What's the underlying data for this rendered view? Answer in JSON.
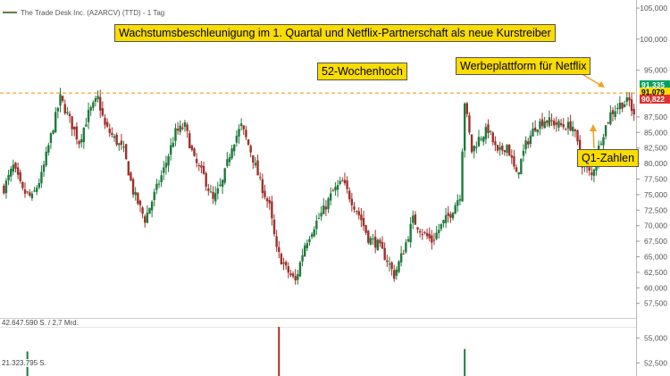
{
  "legend": {
    "title": "The Trade Desk Inc. (A2ARCV) (TTD) - 1 Tag",
    "swatch_colors": [
      "#c0392b",
      "#27ae60"
    ]
  },
  "headline": "Wachstumsbeschleunigung im 1. Quartal und Netflix-Partnerschaft als neue Kurstreiber",
  "annotations": {
    "high_52w": "52-Wochenhoch",
    "netflix": "Werbeplattform für Netflix",
    "q1": "Q1-Zahlen"
  },
  "colors": {
    "up": "#1e7a3c",
    "down": "#a0302a",
    "dashed_line": "#f0a020",
    "annotation_bg": "#fadc00"
  },
  "price_tags": [
    {
      "label": "91,335",
      "value": 91.335,
      "bg": "#00a060",
      "fg": "#ffffff"
    },
    {
      "label": "91,079",
      "value": 91.079,
      "bg": "#fadc00",
      "fg": "#000000"
    },
    {
      "label": "90,822",
      "value": 90.822,
      "bg": "#e03030",
      "fg": "#ffffff"
    }
  ],
  "volume_labels": [
    "42.647.590 S. / 2,7 Mrd.",
    "21.323.795 S."
  ],
  "chart_data": {
    "type": "candlestick",
    "title": "The Trade Desk Inc. (A2ARCV) (TTD) - 1 Tag",
    "price_axis": {
      "ticks": [
        "105,000",
        "100,000",
        "95,000",
        "87,500",
        "85,000",
        "82,500",
        "80,000",
        "77,500",
        "75,000",
        "72,500",
        "70,000",
        "67,500",
        "65,000",
        "62,500",
        "60,000",
        "57,500"
      ],
      "tick_values": [
        105,
        100,
        95,
        87.5,
        85,
        82.5,
        80,
        77.5,
        75,
        72.5,
        70,
        67.5,
        65,
        62.5,
        60,
        57.5
      ],
      "range": [
        55.3,
        106.3
      ]
    },
    "lower_axis": {
      "ticks": [
        "55,000",
        "52,500"
      ],
      "tick_values": [
        55,
        52.5
      ],
      "range": [
        51.2,
        56.2
      ]
    },
    "reference_line": {
      "value": 91.335,
      "label": "52-Wochenhoch"
    },
    "volume_max": 42647590,
    "anchors": [
      [
        0,
        76
      ],
      [
        4,
        79.5
      ],
      [
        8,
        75.5
      ],
      [
        12,
        74.5
      ],
      [
        16,
        78
      ],
      [
        21,
        86
      ],
      [
        24,
        90.5
      ],
      [
        28,
        87
      ],
      [
        32,
        83.5
      ],
      [
        36,
        88
      ],
      [
        40,
        90.5
      ],
      [
        43,
        86
      ],
      [
        47,
        84
      ],
      [
        51,
        82
      ],
      [
        55,
        75.5
      ],
      [
        60,
        71
      ],
      [
        64,
        75
      ],
      [
        68,
        79
      ],
      [
        73,
        85
      ],
      [
        77,
        86
      ],
      [
        81,
        80.5
      ],
      [
        85,
        78
      ],
      [
        89,
        74
      ],
      [
        93,
        77
      ],
      [
        97,
        83
      ],
      [
        101,
        86
      ],
      [
        105,
        82
      ],
      [
        109,
        77
      ],
      [
        113,
        73
      ],
      [
        116,
        66
      ],
      [
        120,
        63
      ],
      [
        124,
        61
      ],
      [
        128,
        67
      ],
      [
        132,
        70
      ],
      [
        136,
        72.5
      ],
      [
        140,
        75.5
      ],
      [
        144,
        77
      ],
      [
        148,
        74
      ],
      [
        152,
        71
      ],
      [
        155,
        68
      ],
      [
        159,
        67
      ],
      [
        163,
        64.5
      ],
      [
        166,
        62
      ],
      [
        170,
        66
      ],
      [
        174,
        71
      ],
      [
        178,
        69
      ],
      [
        182,
        67.5
      ],
      [
        186,
        70
      ],
      [
        190,
        72
      ],
      [
        194,
        75
      ],
      [
        196,
        90
      ],
      [
        199,
        82
      ],
      [
        202,
        84
      ],
      [
        206,
        85.5
      ],
      [
        210,
        81.5
      ],
      [
        214,
        83
      ],
      [
        218,
        78
      ],
      [
        222,
        83
      ],
      [
        226,
        86
      ],
      [
        230,
        87
      ],
      [
        234,
        86.5
      ],
      [
        238,
        86
      ],
      [
        242,
        86
      ],
      [
        246,
        80
      ],
      [
        250,
        78
      ],
      [
        254,
        84
      ],
      [
        258,
        88
      ],
      [
        262,
        89.5
      ],
      [
        266,
        90
      ],
      [
        268,
        87.5
      ]
    ],
    "volume_spikes": [
      {
        "index": 10,
        "fraction": 0.5,
        "direction": "up"
      },
      {
        "index": 117,
        "fraction": 1.0,
        "direction": "down"
      },
      {
        "index": 196,
        "fraction": 0.55,
        "direction": "up"
      }
    ]
  }
}
